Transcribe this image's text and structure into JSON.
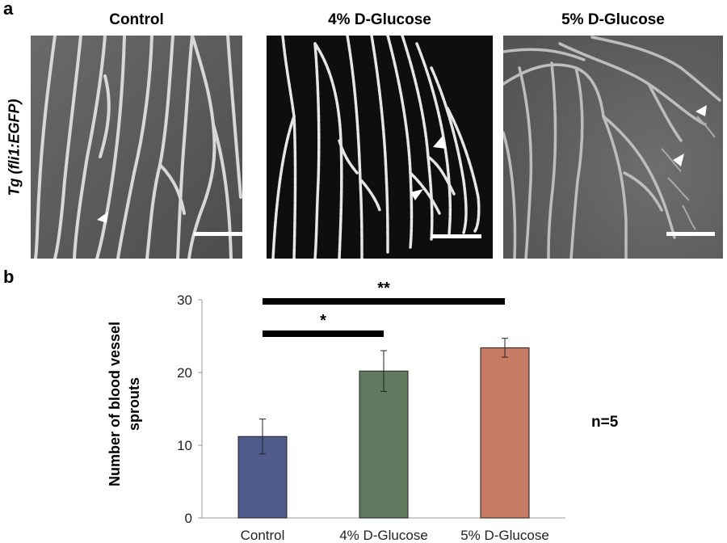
{
  "panels": {
    "a": {
      "letter": "a",
      "side_label": "Tg (fli1:EGFP)",
      "images": [
        {
          "title": "Control"
        },
        {
          "title": "4% D-Glucose"
        },
        {
          "title": "5% D-Glucose"
        }
      ]
    },
    "b": {
      "letter": "b",
      "n_label": "n=5"
    }
  },
  "chart_data": {
    "type": "bar",
    "categories": [
      "Control",
      "4% D-Glucose",
      "5% D-Glucose"
    ],
    "values": [
      11.2,
      20.2,
      23.4
    ],
    "errors": [
      2.4,
      2.8,
      1.3
    ],
    "colors": [
      "#4e5b8c",
      "#5f7a5e",
      "#c77b65"
    ],
    "ylabel": "Number of blood vessel sprouts",
    "ylim": [
      0,
      30
    ],
    "yticks": [
      0,
      10,
      20,
      30
    ],
    "significance": [
      {
        "from": 0,
        "to": 1,
        "label": "*"
      },
      {
        "from": 0,
        "to": 2,
        "label": "**"
      }
    ]
  }
}
